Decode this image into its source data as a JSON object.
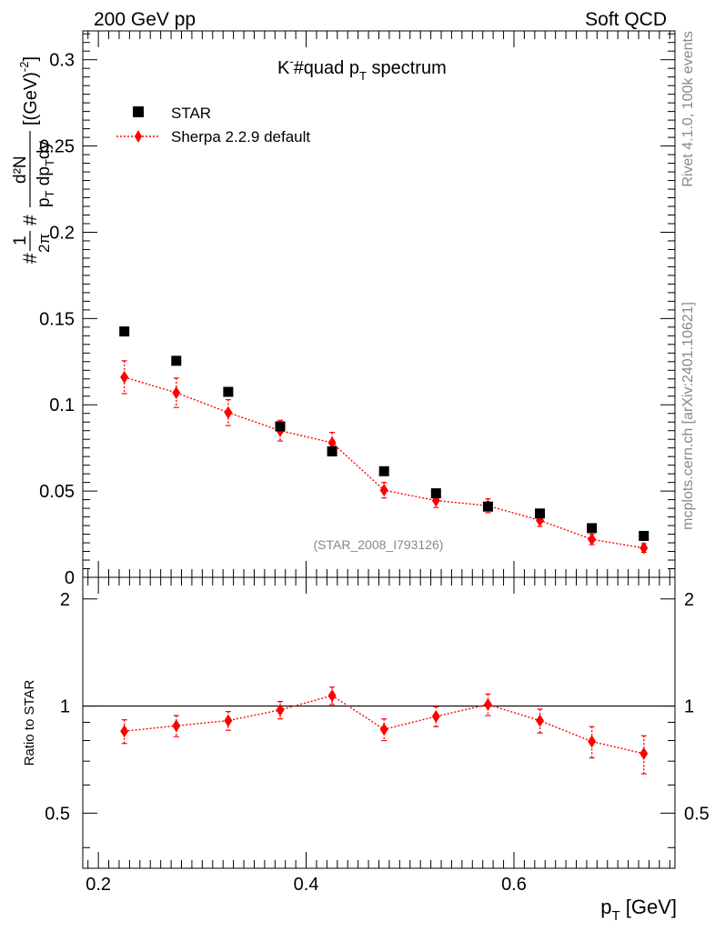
{
  "header": {
    "left": "200 GeV pp",
    "right": "Soft QCD",
    "side_top": "Rivet 4.1.0,  100k events",
    "side_bottom": "mcplots.cern.ch [arXiv:2401.10621]"
  },
  "colors": {
    "data": "#000000",
    "mc": "#ff0000",
    "grid": "#000000"
  },
  "chart_data": [
    {
      "type": "scatter",
      "title": "K⁻#quad p_T spectrum",
      "title_main": "K",
      "title_sup": "-",
      "title_mid": "#quad p",
      "title_sub": "T",
      "title_end": " spectrum",
      "ylabel": "#1/2π #d²N/p_T dp_T dy [(GeV)⁻²]",
      "ylabel_parts": {
        "pre": "#",
        "num1": "1",
        "den1": "2π",
        "hash2": "#",
        "num2": "d²N",
        "den2": "p",
        "den2_sub": "T",
        "den2_mid": " dp",
        "den2_sub2": "T",
        "den2_end": "dy",
        "unit": "[(GeV)",
        "unit_sup": "-2",
        "unit_end": "]"
      },
      "watermark": "(STAR_2008_I793126)",
      "xlim": [
        0.185,
        0.755
      ],
      "ylim": [
        0,
        0.3167
      ],
      "yticks": [
        0,
        0.05,
        0.1,
        0.15,
        0.2,
        0.25,
        0.3
      ],
      "ytick_labels": [
        "0",
        "0.05",
        "0.1",
        "0.15",
        "0.2",
        "0.25",
        "0.3"
      ],
      "legend": [
        "STAR",
        "Sherpa 2.2.9 default"
      ],
      "legend_position": "top-left",
      "series": [
        {
          "name": "STAR",
          "marker": "square",
          "x": [
            0.225,
            0.275,
            0.325,
            0.375,
            0.425,
            0.475,
            0.525,
            0.575,
            0.625,
            0.675,
            0.725
          ],
          "y": [
            0.1425,
            0.1255,
            0.1075,
            0.0875,
            0.073,
            0.0615,
            0.0487,
            0.041,
            0.037,
            0.0285,
            0.024
          ]
        },
        {
          "name": "Sherpa 2.2.9 default",
          "marker": "diamond",
          "x": [
            0.225,
            0.275,
            0.325,
            0.375,
            0.425,
            0.475,
            0.525,
            0.575,
            0.625,
            0.675,
            0.725
          ],
          "y": [
            0.116,
            0.107,
            0.0955,
            0.085,
            0.078,
            0.0505,
            0.0445,
            0.0415,
            0.033,
            0.022,
            0.017
          ],
          "err": [
            0.0095,
            0.0085,
            0.0075,
            0.006,
            0.006,
            0.0045,
            0.004,
            0.004,
            0.0035,
            0.003,
            0.0025
          ]
        }
      ]
    },
    {
      "type": "scatter",
      "ylabel": "Ratio to STAR",
      "xlabel": "p_T [GeV]",
      "xlabel_main": "p",
      "xlabel_sub": "T",
      "xlabel_end": " [GeV]",
      "xlim": [
        0.185,
        0.755
      ],
      "xticks": [
        0.2,
        0.4,
        0.6
      ],
      "xtick_labels": [
        "0.2",
        "0.4",
        "0.6"
      ],
      "ylim": [
        0.35,
        2.3
      ],
      "yticks": [
        0.5,
        1,
        2
      ],
      "ytick_labels": [
        "0.5",
        "1",
        "2"
      ],
      "reference_line": 1,
      "series": [
        {
          "name": "Sherpa 2.2.9 default",
          "x": [
            0.225,
            0.275,
            0.325,
            0.375,
            0.425,
            0.475,
            0.525,
            0.575,
            0.625,
            0.675,
            0.725
          ],
          "y": [
            0.85,
            0.88,
            0.91,
            0.975,
            1.07,
            0.86,
            0.935,
            1.01,
            0.91,
            0.795,
            0.735
          ],
          "err": [
            0.065,
            0.06,
            0.055,
            0.055,
            0.06,
            0.06,
            0.06,
            0.07,
            0.07,
            0.08,
            0.09
          ]
        }
      ]
    }
  ]
}
